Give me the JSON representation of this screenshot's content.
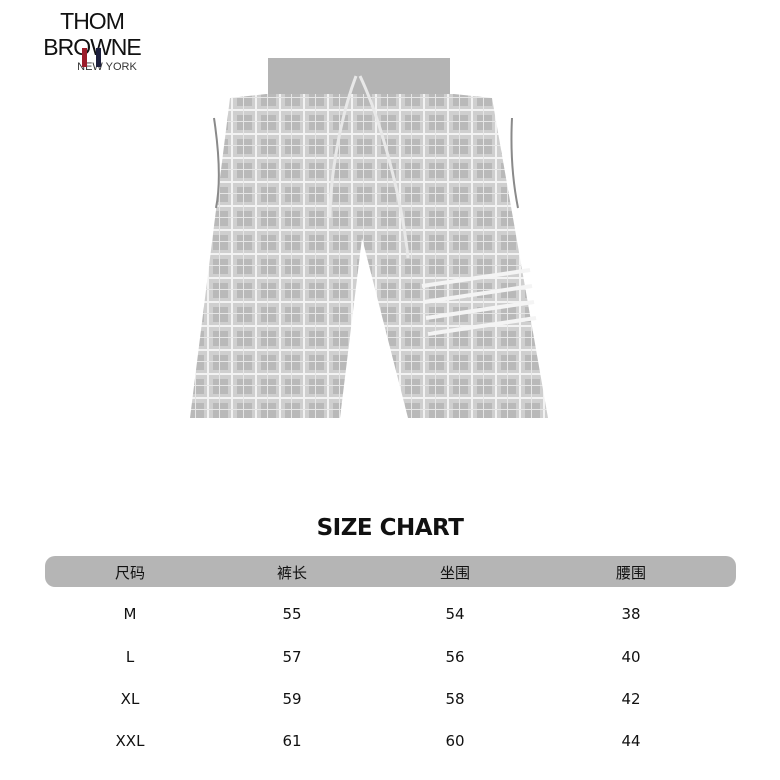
{
  "logo": {
    "brand": "THOM BROWNE",
    "city": "NEW YORK",
    "stripe_colors": [
      "#9b1c2a",
      "#1d1f3d"
    ]
  },
  "product": {
    "image": "grey-check-knit-shorts",
    "color": "#bdbdbd"
  },
  "size_chart": {
    "title": "SIZE CHART",
    "header_color": "#b5b5b5",
    "headers": [
      "尺码",
      "裤长",
      "坐围",
      "腰围"
    ],
    "rows": [
      [
        "M",
        "55",
        "54",
        "38"
      ],
      [
        "L",
        "57",
        "56",
        "40"
      ],
      [
        "XL",
        "59",
        "58",
        "42"
      ],
      [
        "XXL",
        "61",
        "60",
        "44"
      ]
    ]
  }
}
